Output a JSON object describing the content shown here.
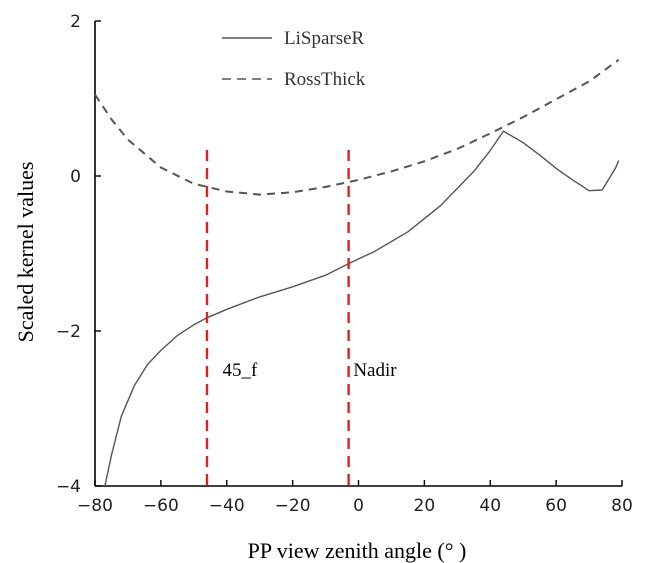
{
  "chart_data": {
    "type": "line",
    "title": "",
    "xlabel": "PP view zenith angle (° )",
    "ylabel": "Scaled kernel values",
    "xlim": [
      -80,
      80
    ],
    "ylim": [
      -4,
      2
    ],
    "xticks": [
      -80,
      -60,
      -40,
      -20,
      0,
      20,
      40,
      60,
      80
    ],
    "yticks": [
      -4,
      -2,
      0,
      2
    ],
    "xtick_labels": [
      "−80",
      "−60",
      "−40",
      "−20",
      "0",
      "20",
      "40",
      "60",
      "80"
    ],
    "ytick_labels": [
      "−4",
      "−2",
      "0",
      "2"
    ],
    "grid": false,
    "legend_position": "top-center",
    "series": [
      {
        "name": "LiSparseR",
        "style": "solid",
        "color": "#555555",
        "x": [
          -77,
          -75,
          -72,
          -68,
          -64,
          -60,
          -55,
          -50,
          -46,
          -40,
          -30,
          -20,
          -10,
          -3,
          5,
          15,
          25,
          35,
          40,
          44,
          50,
          55,
          60,
          65,
          70,
          74,
          78,
          79
        ],
        "y": [
          -4,
          -3.6,
          -3.1,
          -2.7,
          -2.43,
          -2.25,
          -2.06,
          -1.92,
          -1.83,
          -1.72,
          -1.56,
          -1.43,
          -1.28,
          -1.13,
          -0.97,
          -0.72,
          -0.38,
          0.06,
          0.33,
          0.58,
          0.43,
          0.27,
          0.1,
          -0.05,
          -0.19,
          -0.18,
          0.1,
          0.2
        ]
      },
      {
        "name": "RossThick",
        "style": "dashed",
        "color": "#555555",
        "x": [
          -80,
          -75,
          -70,
          -60,
          -50,
          -40,
          -30,
          -20,
          -10,
          0,
          10,
          20,
          30,
          40,
          50,
          60,
          70,
          79
        ],
        "y": [
          1.05,
          0.73,
          0.47,
          0.11,
          -0.1,
          -0.2,
          -0.24,
          -0.21,
          -0.14,
          -0.05,
          0.06,
          0.19,
          0.35,
          0.55,
          0.76,
          0.99,
          1.22,
          1.5
        ]
      }
    ],
    "reference_lines": [
      {
        "x": -46,
        "color": "#e02020",
        "style": "dashed"
      },
      {
        "x": -3,
        "color": "#e02020",
        "style": "dashed"
      }
    ],
    "annotations": [
      {
        "text": "45_f",
        "x": -36,
        "y": -2.5
      },
      {
        "text": "Nadir",
        "x": 5,
        "y": -2.5
      }
    ]
  }
}
